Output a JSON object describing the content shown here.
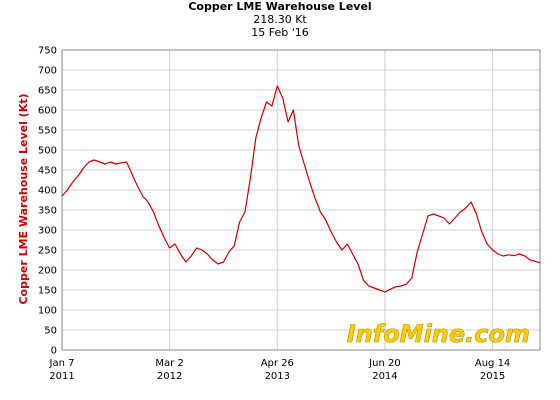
{
  "chart_data": {
    "type": "line",
    "title": "Copper LME Warehouse Level",
    "subtitle_value": "218.30 Kt",
    "subtitle_date": "15 Feb '16",
    "ylabel": "Copper LME Warehouse Level (Kt)",
    "xlabel": "",
    "ylim": [
      0,
      750
    ],
    "y_ticks": [
      0,
      50,
      100,
      150,
      200,
      250,
      300,
      350,
      400,
      450,
      500,
      550,
      600,
      650,
      700,
      750
    ],
    "x_ticks": [
      {
        "line1": "Jan 7",
        "line2": "2011",
        "date": "2011-01-07"
      },
      {
        "line1": "Mar 2",
        "line2": "2012",
        "date": "2012-03-02"
      },
      {
        "line1": "Apr 26",
        "line2": "2013",
        "date": "2013-04-26"
      },
      {
        "line1": "Jun 20",
        "line2": "2014",
        "date": "2014-06-20"
      },
      {
        "line1": "Aug 14",
        "line2": "2015",
        "date": "2015-08-14"
      }
    ],
    "x_range": [
      "2011-01-07",
      "2016-02-15"
    ],
    "grid": true,
    "line_color": "#cc0000",
    "series": [
      {
        "values": [
          [
            "2011-01-07",
            385
          ],
          [
            "2011-01-28",
            400
          ],
          [
            "2011-02-18",
            420
          ],
          [
            "2011-03-11",
            435
          ],
          [
            "2011-04-01",
            455
          ],
          [
            "2011-04-22",
            470
          ],
          [
            "2011-05-13",
            475
          ],
          [
            "2011-06-03",
            470
          ],
          [
            "2011-06-24",
            465
          ],
          [
            "2011-07-15",
            470
          ],
          [
            "2011-08-05",
            465
          ],
          [
            "2011-08-26",
            468
          ],
          [
            "2011-09-16",
            470
          ],
          [
            "2011-10-07",
            440
          ],
          [
            "2011-10-28",
            410
          ],
          [
            "2011-11-18",
            385
          ],
          [
            "2011-12-09",
            370
          ],
          [
            "2011-12-30",
            345
          ],
          [
            "2012-01-20",
            310
          ],
          [
            "2012-02-10",
            280
          ],
          [
            "2012-03-02",
            255
          ],
          [
            "2012-03-23",
            265
          ],
          [
            "2012-04-13",
            240
          ],
          [
            "2012-05-04",
            220
          ],
          [
            "2012-05-25",
            235
          ],
          [
            "2012-06-15",
            255
          ],
          [
            "2012-07-06",
            250
          ],
          [
            "2012-07-27",
            240
          ],
          [
            "2012-08-17",
            225
          ],
          [
            "2012-09-07",
            215
          ],
          [
            "2012-09-28",
            220
          ],
          [
            "2012-10-19",
            245
          ],
          [
            "2012-11-09",
            260
          ],
          [
            "2012-11-30",
            320
          ],
          [
            "2012-12-21",
            345
          ],
          [
            "2013-01-11",
            430
          ],
          [
            "2013-02-01",
            530
          ],
          [
            "2013-02-22",
            580
          ],
          [
            "2013-03-15",
            620
          ],
          [
            "2013-04-05",
            610
          ],
          [
            "2013-04-26",
            660
          ],
          [
            "2013-05-17",
            630
          ],
          [
            "2013-06-07",
            570
          ],
          [
            "2013-06-28",
            600
          ],
          [
            "2013-07-19",
            510
          ],
          [
            "2013-08-09",
            465
          ],
          [
            "2013-08-30",
            420
          ],
          [
            "2013-09-20",
            380
          ],
          [
            "2013-10-11",
            345
          ],
          [
            "2013-11-01",
            325
          ],
          [
            "2013-11-22",
            295
          ],
          [
            "2013-12-13",
            270
          ],
          [
            "2014-01-03",
            250
          ],
          [
            "2014-01-24",
            265
          ],
          [
            "2014-02-14",
            240
          ],
          [
            "2014-03-07",
            215
          ],
          [
            "2014-03-28",
            175
          ],
          [
            "2014-04-18",
            160
          ],
          [
            "2014-05-09",
            155
          ],
          [
            "2014-05-30",
            150
          ],
          [
            "2014-06-20",
            145
          ],
          [
            "2014-07-11",
            152
          ],
          [
            "2014-08-01",
            158
          ],
          [
            "2014-08-22",
            160
          ],
          [
            "2014-09-12",
            165
          ],
          [
            "2014-10-03",
            180
          ],
          [
            "2014-10-24",
            245
          ],
          [
            "2014-11-14",
            290
          ],
          [
            "2014-12-05",
            335
          ],
          [
            "2014-12-26",
            340
          ],
          [
            "2015-01-16",
            335
          ],
          [
            "2015-02-06",
            330
          ],
          [
            "2015-02-27",
            315
          ],
          [
            "2015-03-20",
            330
          ],
          [
            "2015-04-10",
            345
          ],
          [
            "2015-05-01",
            355
          ],
          [
            "2015-05-22",
            370
          ],
          [
            "2015-06-12",
            340
          ],
          [
            "2015-07-03",
            295
          ],
          [
            "2015-07-24",
            265
          ],
          [
            "2015-08-14",
            250
          ],
          [
            "2015-09-04",
            240
          ],
          [
            "2015-09-25",
            235
          ],
          [
            "2015-10-16",
            238
          ],
          [
            "2015-11-06",
            236
          ],
          [
            "2015-11-27",
            240
          ],
          [
            "2015-12-18",
            235
          ],
          [
            "2016-01-08",
            225
          ],
          [
            "2016-02-15",
            218.3
          ]
        ]
      }
    ],
    "watermark": "InfoMine.com"
  }
}
